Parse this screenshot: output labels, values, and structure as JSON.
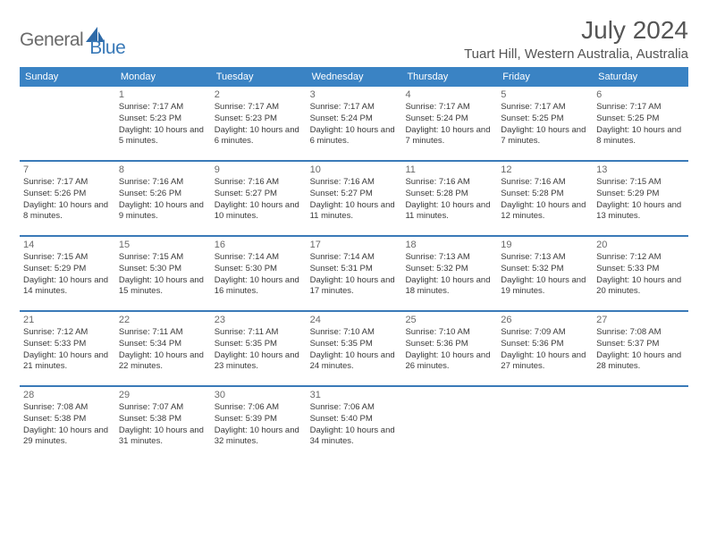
{
  "brand": {
    "text1": "General",
    "text2": "Blue"
  },
  "title": "July 2024",
  "location": "Tuart Hill, Western Australia, Australia",
  "colors": {
    "header_bg": "#3a83c4",
    "border": "#3a7ab8",
    "logo_gray": "#6b6b6b",
    "logo_blue": "#3a7ab8"
  },
  "weekdays": [
    "Sunday",
    "Monday",
    "Tuesday",
    "Wednesday",
    "Thursday",
    "Friday",
    "Saturday"
  ],
  "weeks": [
    [
      {
        "n": "",
        "sr": "",
        "ss": "",
        "dl": ""
      },
      {
        "n": "1",
        "sr": "Sunrise: 7:17 AM",
        "ss": "Sunset: 5:23 PM",
        "dl": "Daylight: 10 hours and 5 minutes."
      },
      {
        "n": "2",
        "sr": "Sunrise: 7:17 AM",
        "ss": "Sunset: 5:23 PM",
        "dl": "Daylight: 10 hours and 6 minutes."
      },
      {
        "n": "3",
        "sr": "Sunrise: 7:17 AM",
        "ss": "Sunset: 5:24 PM",
        "dl": "Daylight: 10 hours and 6 minutes."
      },
      {
        "n": "4",
        "sr": "Sunrise: 7:17 AM",
        "ss": "Sunset: 5:24 PM",
        "dl": "Daylight: 10 hours and 7 minutes."
      },
      {
        "n": "5",
        "sr": "Sunrise: 7:17 AM",
        "ss": "Sunset: 5:25 PM",
        "dl": "Daylight: 10 hours and 7 minutes."
      },
      {
        "n": "6",
        "sr": "Sunrise: 7:17 AM",
        "ss": "Sunset: 5:25 PM",
        "dl": "Daylight: 10 hours and 8 minutes."
      }
    ],
    [
      {
        "n": "7",
        "sr": "Sunrise: 7:17 AM",
        "ss": "Sunset: 5:26 PM",
        "dl": "Daylight: 10 hours and 8 minutes."
      },
      {
        "n": "8",
        "sr": "Sunrise: 7:16 AM",
        "ss": "Sunset: 5:26 PM",
        "dl": "Daylight: 10 hours and 9 minutes."
      },
      {
        "n": "9",
        "sr": "Sunrise: 7:16 AM",
        "ss": "Sunset: 5:27 PM",
        "dl": "Daylight: 10 hours and 10 minutes."
      },
      {
        "n": "10",
        "sr": "Sunrise: 7:16 AM",
        "ss": "Sunset: 5:27 PM",
        "dl": "Daylight: 10 hours and 11 minutes."
      },
      {
        "n": "11",
        "sr": "Sunrise: 7:16 AM",
        "ss": "Sunset: 5:28 PM",
        "dl": "Daylight: 10 hours and 11 minutes."
      },
      {
        "n": "12",
        "sr": "Sunrise: 7:16 AM",
        "ss": "Sunset: 5:28 PM",
        "dl": "Daylight: 10 hours and 12 minutes."
      },
      {
        "n": "13",
        "sr": "Sunrise: 7:15 AM",
        "ss": "Sunset: 5:29 PM",
        "dl": "Daylight: 10 hours and 13 minutes."
      }
    ],
    [
      {
        "n": "14",
        "sr": "Sunrise: 7:15 AM",
        "ss": "Sunset: 5:29 PM",
        "dl": "Daylight: 10 hours and 14 minutes."
      },
      {
        "n": "15",
        "sr": "Sunrise: 7:15 AM",
        "ss": "Sunset: 5:30 PM",
        "dl": "Daylight: 10 hours and 15 minutes."
      },
      {
        "n": "16",
        "sr": "Sunrise: 7:14 AM",
        "ss": "Sunset: 5:30 PM",
        "dl": "Daylight: 10 hours and 16 minutes."
      },
      {
        "n": "17",
        "sr": "Sunrise: 7:14 AM",
        "ss": "Sunset: 5:31 PM",
        "dl": "Daylight: 10 hours and 17 minutes."
      },
      {
        "n": "18",
        "sr": "Sunrise: 7:13 AM",
        "ss": "Sunset: 5:32 PM",
        "dl": "Daylight: 10 hours and 18 minutes."
      },
      {
        "n": "19",
        "sr": "Sunrise: 7:13 AM",
        "ss": "Sunset: 5:32 PM",
        "dl": "Daylight: 10 hours and 19 minutes."
      },
      {
        "n": "20",
        "sr": "Sunrise: 7:12 AM",
        "ss": "Sunset: 5:33 PM",
        "dl": "Daylight: 10 hours and 20 minutes."
      }
    ],
    [
      {
        "n": "21",
        "sr": "Sunrise: 7:12 AM",
        "ss": "Sunset: 5:33 PM",
        "dl": "Daylight: 10 hours and 21 minutes."
      },
      {
        "n": "22",
        "sr": "Sunrise: 7:11 AM",
        "ss": "Sunset: 5:34 PM",
        "dl": "Daylight: 10 hours and 22 minutes."
      },
      {
        "n": "23",
        "sr": "Sunrise: 7:11 AM",
        "ss": "Sunset: 5:35 PM",
        "dl": "Daylight: 10 hours and 23 minutes."
      },
      {
        "n": "24",
        "sr": "Sunrise: 7:10 AM",
        "ss": "Sunset: 5:35 PM",
        "dl": "Daylight: 10 hours and 24 minutes."
      },
      {
        "n": "25",
        "sr": "Sunrise: 7:10 AM",
        "ss": "Sunset: 5:36 PM",
        "dl": "Daylight: 10 hours and 26 minutes."
      },
      {
        "n": "26",
        "sr": "Sunrise: 7:09 AM",
        "ss": "Sunset: 5:36 PM",
        "dl": "Daylight: 10 hours and 27 minutes."
      },
      {
        "n": "27",
        "sr": "Sunrise: 7:08 AM",
        "ss": "Sunset: 5:37 PM",
        "dl": "Daylight: 10 hours and 28 minutes."
      }
    ],
    [
      {
        "n": "28",
        "sr": "Sunrise: 7:08 AM",
        "ss": "Sunset: 5:38 PM",
        "dl": "Daylight: 10 hours and 29 minutes."
      },
      {
        "n": "29",
        "sr": "Sunrise: 7:07 AM",
        "ss": "Sunset: 5:38 PM",
        "dl": "Daylight: 10 hours and 31 minutes."
      },
      {
        "n": "30",
        "sr": "Sunrise: 7:06 AM",
        "ss": "Sunset: 5:39 PM",
        "dl": "Daylight: 10 hours and 32 minutes."
      },
      {
        "n": "31",
        "sr": "Sunrise: 7:06 AM",
        "ss": "Sunset: 5:40 PM",
        "dl": "Daylight: 10 hours and 34 minutes."
      },
      {
        "n": "",
        "sr": "",
        "ss": "",
        "dl": ""
      },
      {
        "n": "",
        "sr": "",
        "ss": "",
        "dl": ""
      },
      {
        "n": "",
        "sr": "",
        "ss": "",
        "dl": ""
      }
    ]
  ]
}
